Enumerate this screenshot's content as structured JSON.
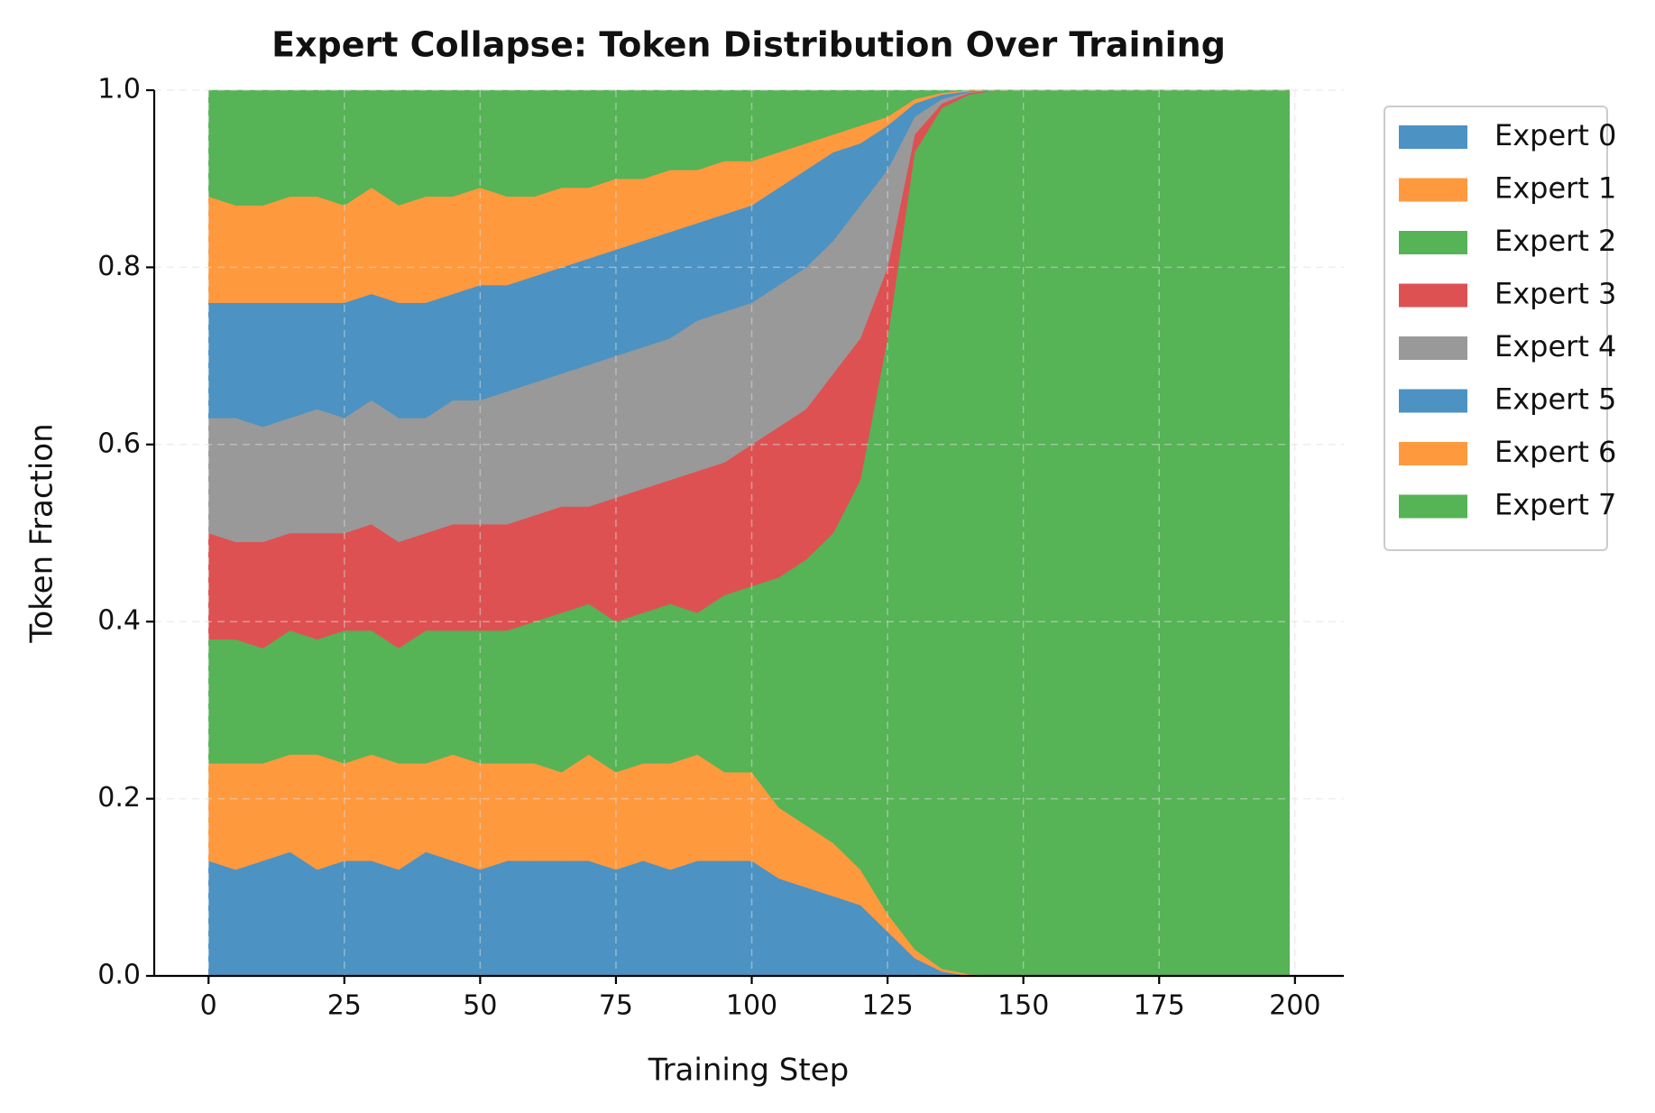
{
  "chart_data": {
    "type": "stacked_area",
    "title": "Expert Collapse: Token Distribution Over Training",
    "xlabel": "Training Step",
    "ylabel": "Token Fraction",
    "x": [
      0,
      5,
      10,
      15,
      20,
      25,
      30,
      35,
      40,
      45,
      50,
      55,
      60,
      65,
      70,
      75,
      80,
      85,
      90,
      95,
      100,
      105,
      110,
      115,
      120,
      125,
      130,
      135,
      140,
      145,
      150,
      155,
      160,
      165,
      170,
      175,
      180,
      185,
      190,
      195,
      199
    ],
    "series": [
      {
        "name": "Expert 0",
        "color": "#4c92c3",
        "values": [
          0.13,
          0.12,
          0.13,
          0.14,
          0.12,
          0.13,
          0.13,
          0.12,
          0.14,
          0.13,
          0.12,
          0.13,
          0.13,
          0.13,
          0.13,
          0.12,
          0.13,
          0.12,
          0.13,
          0.13,
          0.13,
          0.11,
          0.1,
          0.09,
          0.08,
          0.05,
          0.02,
          0.005,
          0,
          0,
          0,
          0,
          0,
          0,
          0,
          0,
          0,
          0,
          0,
          0,
          0
        ]
      },
      {
        "name": "Expert 1",
        "color": "#ff993e",
        "values": [
          0.11,
          0.12,
          0.11,
          0.11,
          0.13,
          0.11,
          0.12,
          0.12,
          0.1,
          0.12,
          0.12,
          0.11,
          0.11,
          0.1,
          0.12,
          0.11,
          0.11,
          0.12,
          0.12,
          0.1,
          0.1,
          0.08,
          0.07,
          0.06,
          0.04,
          0.02,
          0.01,
          0.003,
          0.002,
          0,
          0,
          0,
          0,
          0,
          0,
          0,
          0,
          0,
          0,
          0,
          0
        ]
      },
      {
        "name": "Expert 2",
        "color": "#56b356",
        "values": [
          0.14,
          0.14,
          0.13,
          0.14,
          0.13,
          0.15,
          0.14,
          0.13,
          0.15,
          0.14,
          0.15,
          0.15,
          0.16,
          0.18,
          0.17,
          0.17,
          0.17,
          0.18,
          0.16,
          0.2,
          0.21,
          0.26,
          0.3,
          0.35,
          0.44,
          0.65,
          0.9,
          0.972,
          0.993,
          1,
          1,
          1,
          1,
          1,
          1,
          1,
          1,
          1,
          1,
          1,
          1
        ]
      },
      {
        "name": "Expert 3",
        "color": "#de5152",
        "values": [
          0.12,
          0.11,
          0.12,
          0.11,
          0.12,
          0.11,
          0.12,
          0.12,
          0.11,
          0.12,
          0.12,
          0.12,
          0.12,
          0.12,
          0.11,
          0.14,
          0.14,
          0.14,
          0.16,
          0.15,
          0.16,
          0.17,
          0.17,
          0.18,
          0.16,
          0.08,
          0.02,
          0.005,
          0.002,
          0,
          0,
          0,
          0,
          0,
          0,
          0,
          0,
          0,
          0,
          0,
          0
        ]
      },
      {
        "name": "Expert 4",
        "color": "#999999",
        "values": [
          0.13,
          0.14,
          0.13,
          0.13,
          0.14,
          0.13,
          0.14,
          0.14,
          0.13,
          0.14,
          0.14,
          0.15,
          0.15,
          0.15,
          0.16,
          0.16,
          0.16,
          0.16,
          0.17,
          0.17,
          0.16,
          0.16,
          0.16,
          0.15,
          0.15,
          0.11,
          0.02,
          0.005,
          0.001,
          0,
          0,
          0,
          0,
          0,
          0,
          0,
          0,
          0,
          0,
          0,
          0
        ]
      },
      {
        "name": "Expert 5",
        "color": "#4c92c3",
        "values": [
          0.13,
          0.13,
          0.14,
          0.13,
          0.12,
          0.13,
          0.12,
          0.13,
          0.13,
          0.12,
          0.13,
          0.12,
          0.12,
          0.12,
          0.12,
          0.12,
          0.12,
          0.12,
          0.11,
          0.11,
          0.11,
          0.11,
          0.11,
          0.1,
          0.07,
          0.05,
          0.015,
          0.005,
          0.001,
          0,
          0,
          0,
          0,
          0,
          0,
          0,
          0,
          0,
          0,
          0,
          0
        ]
      },
      {
        "name": "Expert 6",
        "color": "#ff993e",
        "values": [
          0.12,
          0.11,
          0.11,
          0.12,
          0.12,
          0.11,
          0.12,
          0.11,
          0.12,
          0.11,
          0.11,
          0.1,
          0.09,
          0.09,
          0.08,
          0.08,
          0.07,
          0.07,
          0.06,
          0.06,
          0.05,
          0.04,
          0.03,
          0.02,
          0.02,
          0.01,
          0.005,
          0.002,
          0.001,
          0,
          0,
          0,
          0,
          0,
          0,
          0,
          0,
          0,
          0,
          0,
          0
        ]
      },
      {
        "name": "Expert 7",
        "color": "#56b356",
        "values": [
          0.12,
          0.13,
          0.13,
          0.12,
          0.12,
          0.13,
          0.11,
          0.13,
          0.12,
          0.12,
          0.11,
          0.12,
          0.12,
          0.11,
          0.11,
          0.1,
          0.1,
          0.09,
          0.09,
          0.08,
          0.08,
          0.07,
          0.06,
          0.05,
          0.04,
          0.03,
          0.01,
          0.003,
          0,
          0,
          0,
          0,
          0,
          0,
          0,
          0,
          0,
          0,
          0,
          0,
          0
        ]
      }
    ],
    "xlim": [
      -10,
      209
    ],
    "ylim": [
      0,
      1
    ],
    "xticks": [
      0,
      25,
      50,
      75,
      100,
      125,
      150,
      175,
      200
    ],
    "yticks": [
      {
        "value": 0,
        "label": "0.0"
      },
      {
        "value": 0.2,
        "label": "0.2"
      },
      {
        "value": 0.4,
        "label": "0.4"
      },
      {
        "value": 0.6,
        "label": "0.6"
      },
      {
        "value": 0.8,
        "label": "0.8"
      },
      {
        "value": 1,
        "label": "1.0"
      }
    ],
    "grid": true,
    "legend": "outside-upper-right"
  }
}
